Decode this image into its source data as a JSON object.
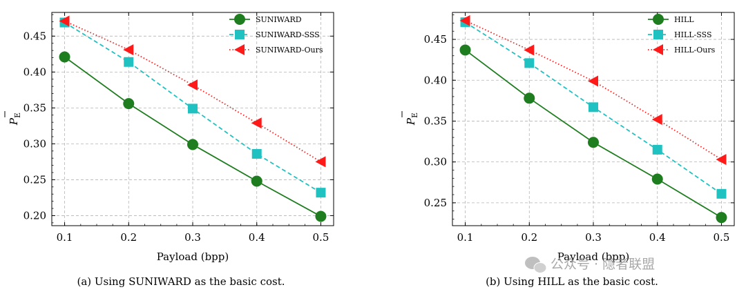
{
  "chart_data": [
    {
      "type": "line",
      "x": [
        0.1,
        0.2,
        0.3,
        0.4,
        0.5
      ],
      "xlabel": "Payload (bpp)",
      "ylabel": "P",
      "ylabel_sub": "E",
      "xlim": [
        0.08,
        0.52
      ],
      "ylim": [
        0.186,
        0.483
      ],
      "xticks": [
        "0.1",
        "0.2",
        "0.3",
        "0.4",
        "0.5"
      ],
      "yticks": [
        0.2,
        0.25,
        0.3,
        0.35,
        0.4,
        0.45
      ],
      "ytick_labels": [
        "0.20",
        "0.25",
        "0.30",
        "0.35",
        "0.40",
        "0.45"
      ],
      "grid": true,
      "legend": "top-right",
      "caption": "(a) Using SUNIWARD as the basic cost.",
      "series": [
        {
          "name": "SUNIWARD",
          "values": [
            0.421,
            0.356,
            0.299,
            0.248,
            0.199
          ],
          "color": "#1e7d1e",
          "marker": "circle",
          "style": "solid"
        },
        {
          "name": "SUNIWARD-SSS",
          "values": [
            0.469,
            0.414,
            0.349,
            0.286,
            0.232
          ],
          "color": "#1fc1c1",
          "marker": "square",
          "style": "dashed"
        },
        {
          "name": "SUNIWARD-Ours",
          "values": [
            0.471,
            0.431,
            0.382,
            0.329,
            0.275
          ],
          "color": "#ff1a1a",
          "marker": "triangle-left",
          "style": "dotted"
        }
      ]
    },
    {
      "type": "line",
      "x": [
        0.1,
        0.2,
        0.3,
        0.4,
        0.5
      ],
      "xlabel": "Payload (bpp)",
      "ylabel": "P",
      "ylabel_sub": "E",
      "xlim": [
        0.08,
        0.52
      ],
      "ylim": [
        0.222,
        0.483
      ],
      "xticks": [
        "0.1",
        "0.2",
        "0.3",
        "0.4",
        "0.5"
      ],
      "yticks": [
        0.25,
        0.3,
        0.35,
        0.4,
        0.45
      ],
      "ytick_labels": [
        "0.25",
        "0.30",
        "0.35",
        "0.40",
        "0.45"
      ],
      "grid": true,
      "legend": "top-right",
      "caption": "(b) Using HILL as the basic cost.",
      "series": [
        {
          "name": "HILL",
          "values": [
            0.437,
            0.378,
            0.324,
            0.279,
            0.232
          ],
          "color": "#1e7d1e",
          "marker": "circle",
          "style": "solid"
        },
        {
          "name": "HILL-SSS",
          "values": [
            0.471,
            0.421,
            0.367,
            0.315,
            0.261
          ],
          "color": "#1fc1c1",
          "marker": "square",
          "style": "dashed"
        },
        {
          "name": "HILL-Ours",
          "values": [
            0.473,
            0.437,
            0.399,
            0.352,
            0.303
          ],
          "color": "#ff1a1a",
          "marker": "triangle-left",
          "style": "dotted"
        }
      ]
    }
  ],
  "watermark": {
    "text": "公众号 · 隐者联盟",
    "icon": "wechat-icon"
  }
}
